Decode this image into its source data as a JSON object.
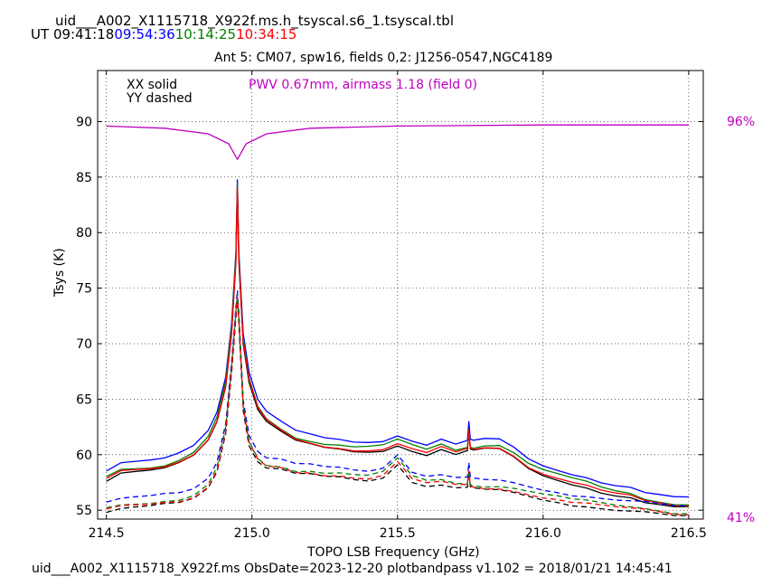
{
  "header": {
    "title": "uid___A002_X1115718_X922f.ms.h_tsyscal.s6_1.tsyscal.tbl",
    "ut_prefix": "UT",
    "times": [
      {
        "label": "09:41:18",
        "color": "#000000"
      },
      {
        "label": "09:54:36",
        "color": "#0000ff"
      },
      {
        "label": "10:14:25",
        "color": "#008000"
      },
      {
        "label": "10:34:15",
        "color": "#ff0000"
      }
    ],
    "subtitle": "Ant 5: CM07,  spw16,  fields 0,2: J1256-0547,NGC4189"
  },
  "footer": "uid___A002_X1115718_X922f.ms  ObsDate=2023-12-20   plotbandpass v1.102 = 2018/01/21 14:45:41",
  "chart_data": {
    "type": "line",
    "xlabel": "TOPO LSB Frequency (GHz)",
    "ylabel": "Tsys (K)",
    "xlim": [
      214.47,
      216.55
    ],
    "ylim": [
      54.2,
      94.6
    ],
    "xticks": [
      214.5,
      215.0,
      215.5,
      216.0,
      216.5
    ],
    "xtick_labels": [
      "214.5",
      "215.0",
      "215.5",
      "216.0",
      "216.5"
    ],
    "yticks": [
      55,
      60,
      65,
      70,
      75,
      80,
      85,
      90
    ],
    "ytick_labels": [
      "55",
      "60",
      "65",
      "70",
      "75",
      "80",
      "85",
      "90"
    ],
    "grid": true,
    "legend_text": [
      "XX solid",
      "YY dashed"
    ],
    "annotation": "PWV 0.67mm, airmass 1.18 (field 0)",
    "annotation_color": "#bf00bf",
    "right_axis": {
      "top_label": "96%",
      "bottom_label": "41%",
      "color": "#bf00bf"
    },
    "atm_transmission_K_scale": {
      "x": [
        214.5,
        214.7,
        214.85,
        214.92,
        214.95,
        214.98,
        215.05,
        215.2,
        215.5,
        216.0,
        216.5
      ],
      "y": [
        89.6,
        89.4,
        88.9,
        88.0,
        86.6,
        88.0,
        88.9,
        89.4,
        89.6,
        89.7,
        89.7
      ]
    },
    "series": [
      {
        "name": "09:41:18 XX",
        "color": "#000000",
        "dash": false,
        "offset": 0.0
      },
      {
        "name": "09:54:36 XX",
        "color": "#0000ff",
        "dash": false,
        "offset": 0.9
      },
      {
        "name": "10:14:25 XX",
        "color": "#008000",
        "dash": false,
        "offset": 0.4
      },
      {
        "name": "10:34:15 XX",
        "color": "#ff0000",
        "dash": false,
        "offset": 0.15
      },
      {
        "name": "09:41:18 YY",
        "color": "#000000",
        "dash": true,
        "offset": 0.0
      },
      {
        "name": "09:54:36 YY",
        "color": "#0000ff",
        "dash": true,
        "offset": 0.9
      },
      {
        "name": "10:14:25 YY",
        "color": "#008000",
        "dash": true,
        "offset": 0.4
      },
      {
        "name": "10:34:15 YY",
        "color": "#ff0000",
        "dash": true,
        "offset": 0.2
      }
    ],
    "xx_base": {
      "x": [
        214.5,
        214.55,
        214.6,
        214.65,
        214.7,
        214.75,
        214.8,
        214.85,
        214.88,
        214.91,
        214.93,
        214.945,
        214.95,
        214.955,
        214.97,
        214.99,
        215.02,
        215.05,
        215.1,
        215.15,
        215.2,
        215.25,
        215.3,
        215.35,
        215.4,
        215.45,
        215.5,
        215.55,
        215.6,
        215.65,
        215.7,
        215.74,
        215.745,
        215.75,
        215.76,
        215.8,
        215.85,
        215.9,
        215.95,
        216.0,
        216.05,
        216.1,
        216.15,
        216.2,
        216.25,
        216.3,
        216.35,
        216.4,
        216.45,
        216.5
      ],
      "y": [
        57.6,
        58.3,
        58.4,
        58.5,
        58.7,
        59.2,
        59.9,
        61.3,
        63.0,
        66.2,
        71.0,
        77.5,
        84.0,
        77.5,
        70.0,
        66.5,
        64.0,
        62.9,
        62.0,
        61.2,
        60.9,
        60.6,
        60.5,
        60.3,
        60.3,
        60.4,
        60.9,
        60.4,
        60.0,
        60.5,
        60.0,
        60.3,
        62.0,
        60.4,
        60.3,
        60.5,
        60.5,
        59.8,
        58.8,
        58.2,
        57.8,
        57.4,
        57.1,
        56.6,
        56.3,
        56.1,
        55.6,
        55.4,
        55.2,
        55.2
      ]
    },
    "yy_base": {
      "x": [
        214.5,
        214.55,
        214.6,
        214.65,
        214.7,
        214.75,
        214.8,
        214.85,
        214.88,
        214.91,
        214.93,
        214.945,
        214.95,
        214.955,
        214.97,
        214.99,
        215.02,
        215.05,
        215.1,
        215.15,
        215.2,
        215.25,
        215.3,
        215.35,
        215.4,
        215.45,
        215.5,
        215.55,
        215.6,
        215.65,
        215.7,
        215.74,
        215.745,
        215.75,
        215.76,
        215.8,
        215.85,
        215.9,
        215.95,
        216.0,
        216.05,
        216.1,
        216.15,
        216.2,
        216.25,
        216.3,
        216.35,
        216.4,
        216.45,
        216.5
      ],
      "y": [
        54.8,
        55.1,
        55.2,
        55.3,
        55.5,
        55.6,
        56.0,
        57.0,
        58.5,
        62.0,
        67.5,
        72.5,
        74.0,
        72.0,
        64.0,
        60.8,
        59.3,
        58.7,
        58.6,
        58.2,
        58.2,
        58.0,
        58.0,
        57.8,
        57.7,
        58.0,
        59.2,
        57.6,
        57.2,
        57.3,
        57.0,
        57.0,
        58.3,
        57.0,
        56.9,
        56.8,
        56.8,
        56.6,
        56.3,
        56.0,
        55.8,
        55.5,
        55.4,
        55.2,
        55.0,
        54.9,
        54.8,
        54.6,
        54.4,
        54.4
      ]
    }
  }
}
